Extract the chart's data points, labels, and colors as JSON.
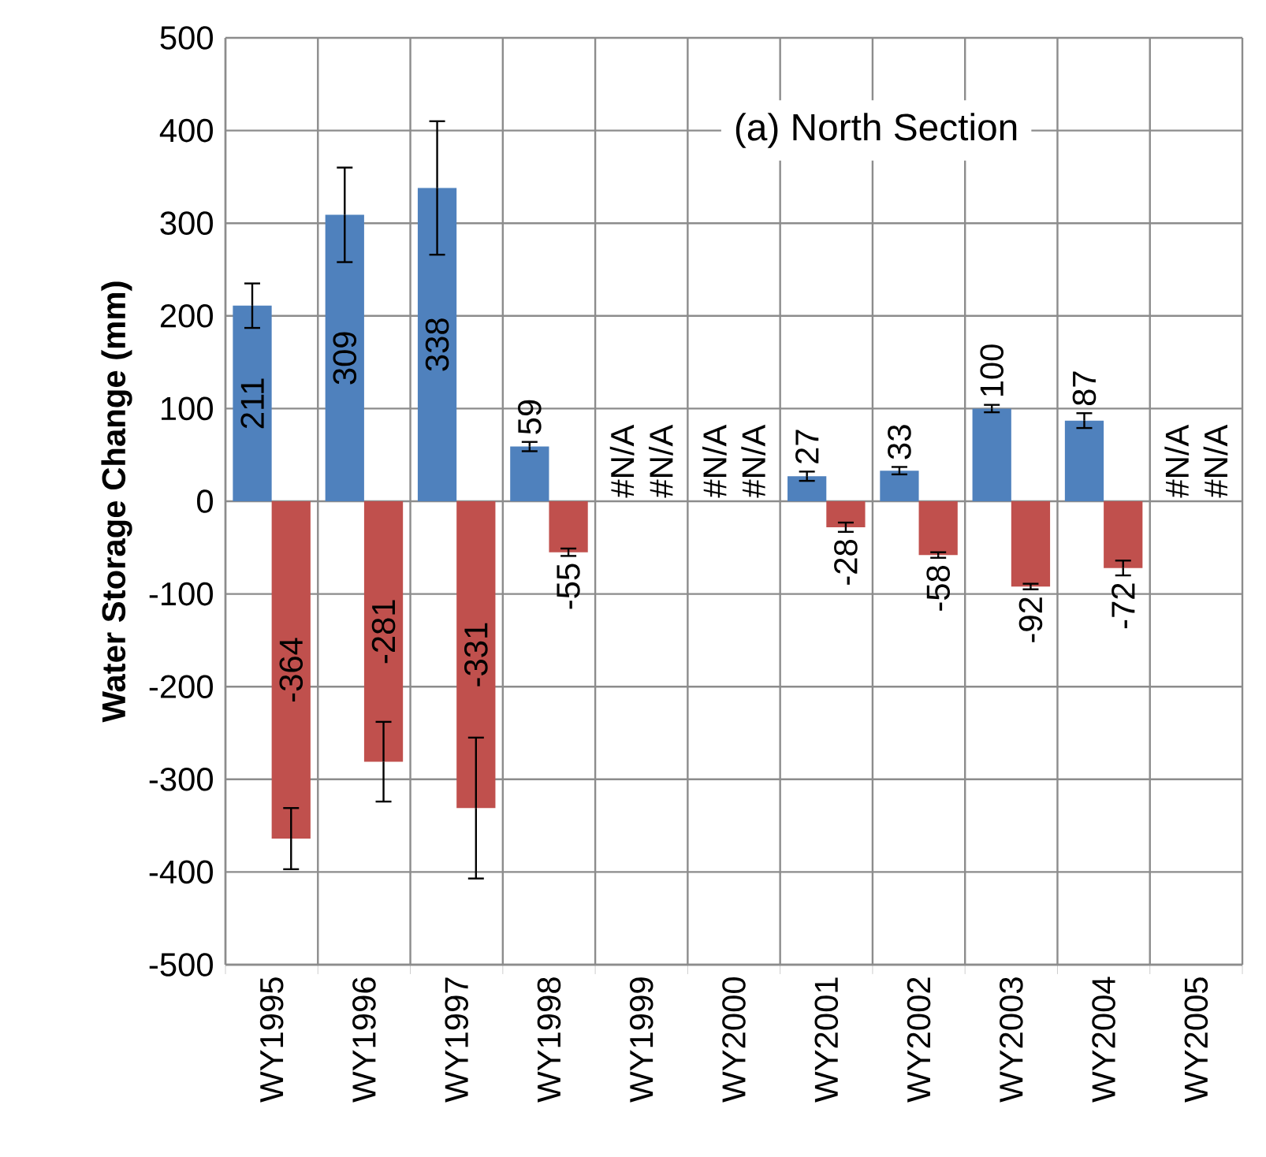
{
  "chart_data": {
    "type": "bar",
    "ylabel": "Water Storage Change (mm)",
    "annotations": [
      "(a) North Section"
    ],
    "categories": [
      "WY1995",
      "WY1996",
      "WY1997",
      "WY1998",
      "WY1999",
      "WY2000",
      "WY2001",
      "WY2002",
      "WY2003",
      "WY2004",
      "WY2005"
    ],
    "series": [
      {
        "color": "#4f81bd",
        "values": [
          211,
          309,
          338,
          59,
          null,
          null,
          27,
          33,
          100,
          87,
          null
        ],
        "errors": [
          24,
          51,
          72,
          5,
          null,
          null,
          5,
          4,
          4,
          8,
          null
        ],
        "value_labels": [
          "211",
          "309",
          "338",
          "59",
          "#N/A",
          "#N/A",
          "27",
          "33",
          "100",
          "87",
          "#N/A"
        ]
      },
      {
        "color": "#c0504d",
        "values": [
          -364,
          -281,
          -331,
          -55,
          null,
          null,
          -28,
          -58,
          -92,
          -72,
          null
        ],
        "errors": [
          33,
          43,
          76,
          4,
          null,
          null,
          5,
          3,
          3,
          8,
          null
        ],
        "value_labels": [
          "-364",
          "-281",
          "-331",
          "-55",
          "#N/A",
          "#N/A",
          "-28",
          "-58",
          "-92",
          "-72",
          "#N/A"
        ]
      }
    ],
    "ylim": [
      -500,
      500
    ],
    "yticks": [
      -500,
      -400,
      -300,
      -200,
      -100,
      0,
      100,
      200,
      300,
      400,
      500
    ],
    "grid": true
  }
}
